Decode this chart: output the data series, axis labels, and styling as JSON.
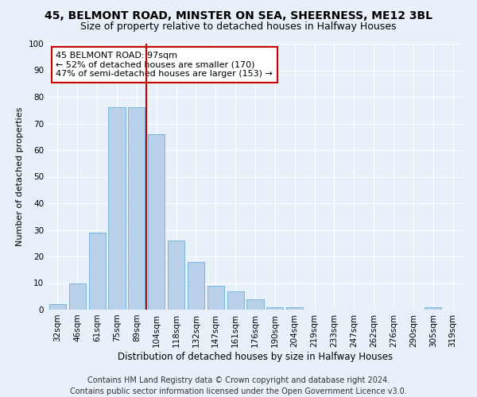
{
  "title1": "45, BELMONT ROAD, MINSTER ON SEA, SHEERNESS, ME12 3BL",
  "title2": "Size of property relative to detached houses in Halfway Houses",
  "xlabel": "Distribution of detached houses by size in Halfway Houses",
  "ylabel": "Number of detached properties",
  "footer1": "Contains HM Land Registry data © Crown copyright and database right 2024.",
  "footer2": "Contains public sector information licensed under the Open Government Licence v3.0.",
  "annotation_title": "45 BELMONT ROAD: 97sqm",
  "annotation_line2": "← 52% of detached houses are smaller (170)",
  "annotation_line3": "47% of semi-detached houses are larger (153) →",
  "bar_labels": [
    "32sqm",
    "46sqm",
    "61sqm",
    "75sqm",
    "89sqm",
    "104sqm",
    "118sqm",
    "132sqm",
    "147sqm",
    "161sqm",
    "176sqm",
    "190sqm",
    "204sqm",
    "219sqm",
    "233sqm",
    "247sqm",
    "262sqm",
    "276sqm",
    "290sqm",
    "305sqm",
    "319sqm"
  ],
  "bar_values": [
    2,
    10,
    29,
    76,
    76,
    66,
    26,
    18,
    9,
    7,
    4,
    1,
    1,
    0,
    0,
    0,
    0,
    0,
    0,
    1,
    0
  ],
  "bar_color": "#b8d0ea",
  "bar_edge_color": "#6aaed6",
  "vline_color": "#cc0000",
  "ylim": [
    0,
    100
  ],
  "background_color": "#e8f0fa",
  "annotation_box_color": "#ffffff",
  "annotation_box_edge": "#cc0000",
  "grid_color": "#ffffff",
  "title1_fontsize": 10,
  "title2_fontsize": 9,
  "xlabel_fontsize": 8.5,
  "ylabel_fontsize": 8,
  "tick_fontsize": 7.5,
  "footer_fontsize": 7,
  "annotation_fontsize": 8
}
